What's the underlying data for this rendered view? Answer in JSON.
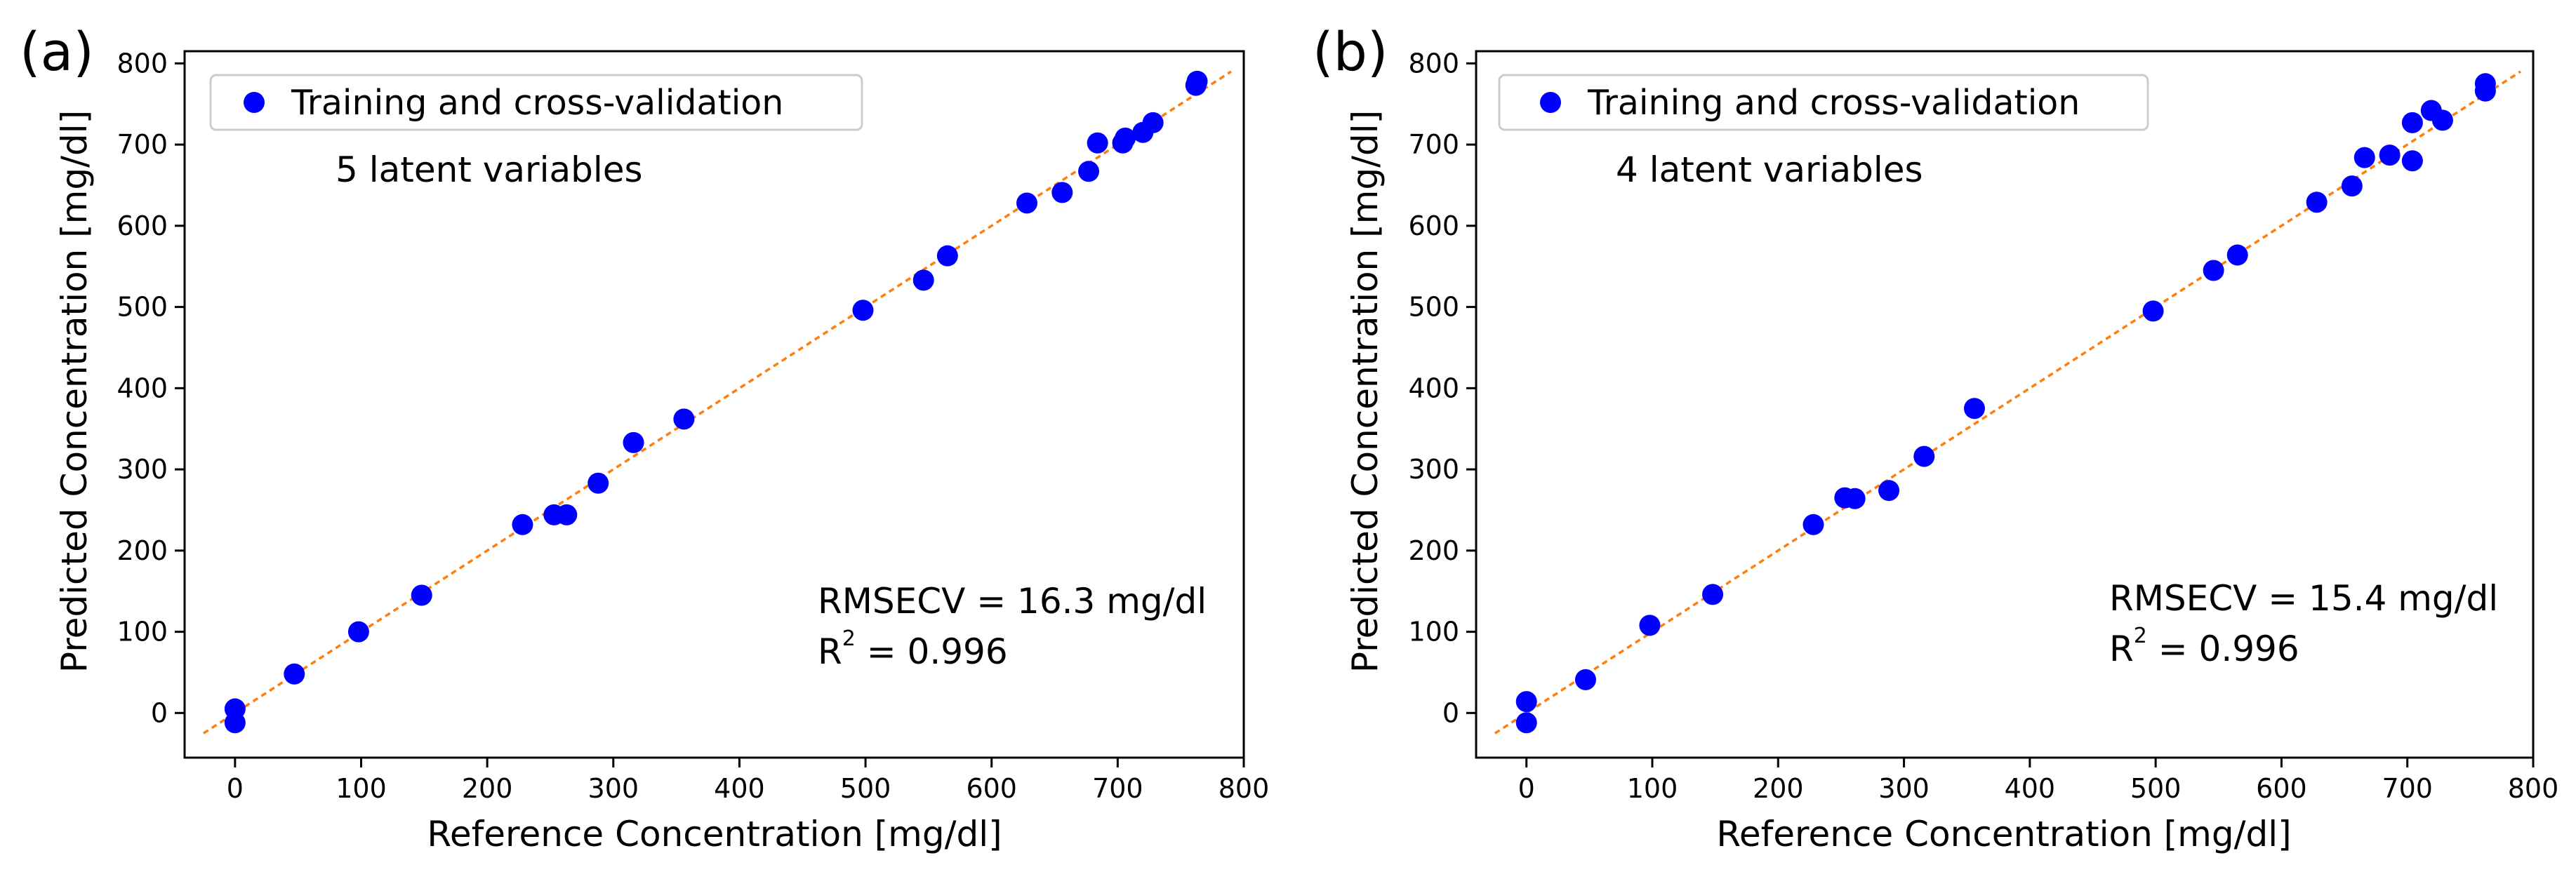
{
  "chart_data": [
    {
      "type": "scatter",
      "panel_label": "(a)",
      "xlabel": "Reference Concentration [mg/dl]",
      "ylabel": "Predicted Concentration [mg/dl]",
      "xlim": [
        -40,
        800
      ],
      "ylim": [
        -55,
        815
      ],
      "xticks": [
        0,
        100,
        200,
        300,
        400,
        500,
        600,
        700,
        800
      ],
      "yticks": [
        0,
        100,
        200,
        300,
        400,
        500,
        600,
        700,
        800
      ],
      "legend": {
        "label": "Training and cross-validation",
        "position": "upper-left"
      },
      "annotation_top": "5 latent variables",
      "rmsecv_text": "RMSECV = 16.3 mg/dl",
      "r2_prefix": "R",
      "r2_sup": "2",
      "r2_value": " = 0.996",
      "identity_line": {
        "from": -25,
        "to": 790,
        "color": "#ff7f0e"
      },
      "marker_color": "#0000ff",
      "series": [
        {
          "name": "Training and cross-validation",
          "points": [
            [
              0,
              5
            ],
            [
              0,
              -12
            ],
            [
              47,
              48
            ],
            [
              98,
              100
            ],
            [
              148,
              145
            ],
            [
              228,
              232
            ],
            [
              253,
              244
            ],
            [
              263,
              244
            ],
            [
              288,
              283
            ],
            [
              316,
              333
            ],
            [
              356,
              362
            ],
            [
              498,
              496
            ],
            [
              546,
              533
            ],
            [
              565,
              563
            ],
            [
              628,
              628
            ],
            [
              656,
              641
            ],
            [
              677,
              667
            ],
            [
              684,
              702
            ],
            [
              704,
              702
            ],
            [
              706,
              708
            ],
            [
              720,
              715
            ],
            [
              728,
              727
            ],
            [
              762,
              773
            ],
            [
              763,
              778
            ]
          ]
        }
      ]
    },
    {
      "type": "scatter",
      "panel_label": "(b)",
      "xlabel": "Reference Concentration [mg/dl]",
      "ylabel": "Predicted Concentration [mg/dl]",
      "xlim": [
        -40,
        800
      ],
      "ylim": [
        -55,
        815
      ],
      "xticks": [
        0,
        100,
        200,
        300,
        400,
        500,
        600,
        700,
        800
      ],
      "yticks": [
        0,
        100,
        200,
        300,
        400,
        500,
        600,
        700,
        800
      ],
      "legend": {
        "label": "Training and cross-validation",
        "position": "upper-left"
      },
      "annotation_top": "4 latent variables",
      "rmsecv_text": "RMSECV = 15.4 mg/dl",
      "r2_prefix": "R",
      "r2_sup": "2",
      "r2_value": " = 0.996",
      "identity_line": {
        "from": -25,
        "to": 790,
        "color": "#ff7f0e"
      },
      "marker_color": "#0000ff",
      "series": [
        {
          "name": "Training and cross-validation",
          "points": [
            [
              0,
              14
            ],
            [
              0,
              -12
            ],
            [
              47,
              41
            ],
            [
              98,
              108
            ],
            [
              148,
              146
            ],
            [
              228,
              232
            ],
            [
              253,
              265
            ],
            [
              261,
              264
            ],
            [
              288,
              274
            ],
            [
              316,
              316
            ],
            [
              356,
              375
            ],
            [
              498,
              495
            ],
            [
              546,
              545
            ],
            [
              565,
              564
            ],
            [
              628,
              629
            ],
            [
              656,
              649
            ],
            [
              666,
              684
            ],
            [
              686,
              687
            ],
            [
              704,
              680
            ],
            [
              704,
              727
            ],
            [
              719,
              742
            ],
            [
              728,
              730
            ],
            [
              762,
              766
            ],
            [
              762,
              775
            ]
          ]
        }
      ]
    }
  ]
}
